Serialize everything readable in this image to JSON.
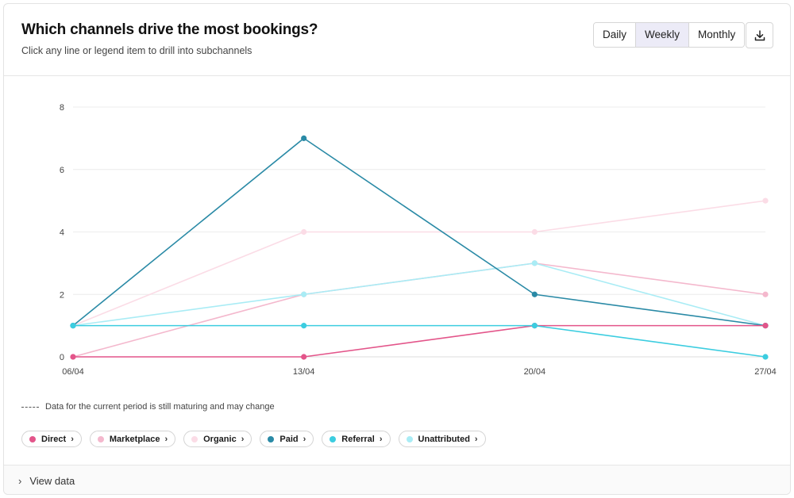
{
  "header": {
    "title": "Which channels drive the most bookings?",
    "subtitle": "Click any line or legend item to drill into subchannels"
  },
  "period_toggle": {
    "options": [
      "Daily",
      "Weekly",
      "Monthly"
    ],
    "selected": "Weekly"
  },
  "download_icon": "download-icon",
  "note": "Data for the current period is still maturing and may change",
  "footer": {
    "label": "View data",
    "icon": "chevron-right-icon"
  },
  "chart_data": {
    "type": "line",
    "x": [
      "06/04",
      "13/04",
      "20/04",
      "27/04"
    ],
    "ylim": [
      0,
      8
    ],
    "yticks": [
      0,
      2,
      4,
      6,
      8
    ],
    "grid": true,
    "legend_position": "bottom",
    "series": [
      {
        "name": "Organic",
        "color": "#fbdce6",
        "values": [
          1,
          4,
          4,
          5
        ]
      },
      {
        "name": "Marketplace",
        "color": "#f4b8cd",
        "values": [
          0,
          2,
          3,
          2
        ]
      },
      {
        "name": "Unattributed",
        "color": "#a9ecf5",
        "values": [
          1,
          2,
          3,
          1
        ]
      },
      {
        "name": "Paid",
        "color": "#2a8aa6",
        "values": [
          1,
          7,
          2,
          1
        ]
      },
      {
        "name": "Direct",
        "color": "#e3558a",
        "values": [
          0,
          0,
          1,
          1
        ]
      },
      {
        "name": "Referral",
        "color": "#3ccde0",
        "values": [
          1,
          1,
          1,
          0
        ]
      }
    ]
  },
  "legend": [
    {
      "name": "Direct",
      "color": "#e3558a"
    },
    {
      "name": "Marketplace",
      "color": "#f4b8cd"
    },
    {
      "name": "Organic",
      "color": "#fbdce6"
    },
    {
      "name": "Paid",
      "color": "#2a8aa6"
    },
    {
      "name": "Referral",
      "color": "#3ccde0"
    },
    {
      "name": "Unattributed",
      "color": "#a9ecf5"
    }
  ],
  "legend_chevron": "›"
}
